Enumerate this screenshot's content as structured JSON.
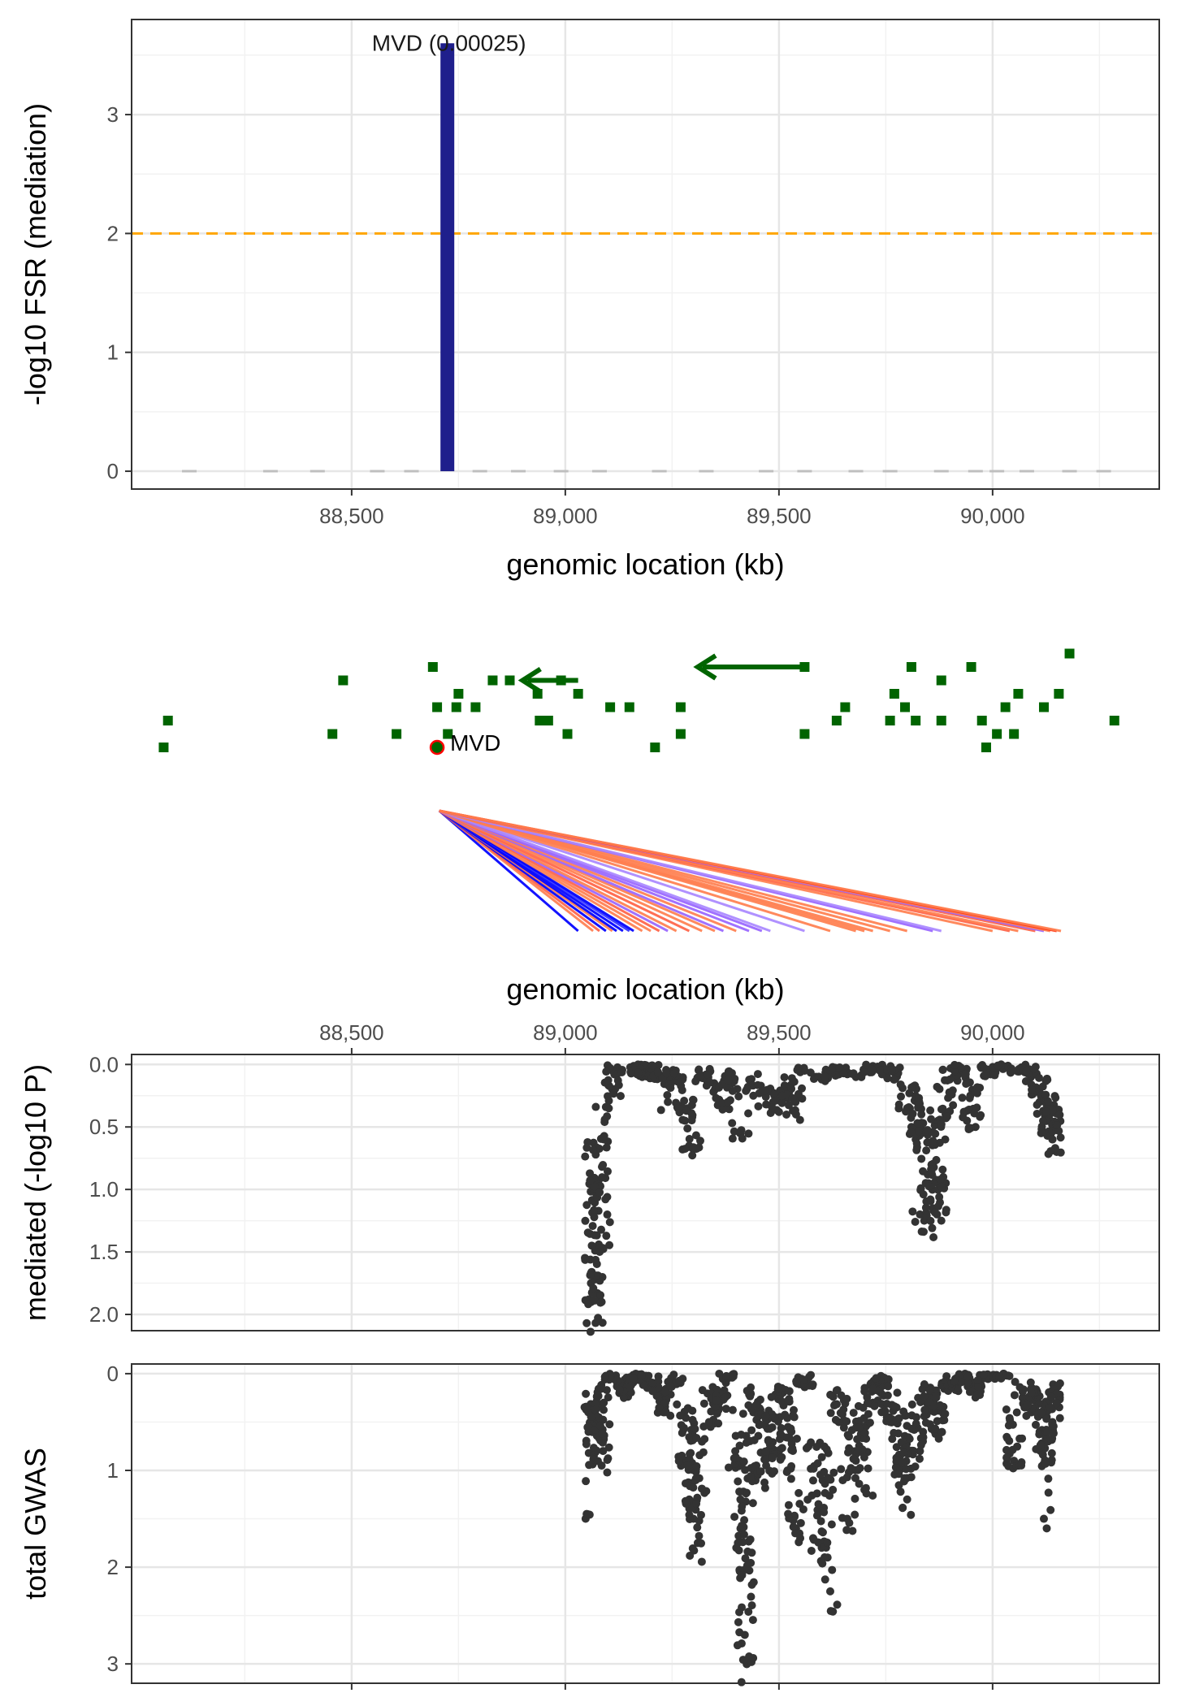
{
  "chart_data": [
    {
      "type": "bar",
      "panel": "mediation",
      "xlabel": "genomic location (kb)",
      "ylabel": "-log10 FSR (mediation)",
      "xlim": [
        87985,
        90390
      ],
      "ylim": [
        -0.15,
        3.8
      ],
      "x_ticks": [
        88500,
        89000,
        89500,
        90000
      ],
      "x_tick_labels": [
        "88,500",
        "89,000",
        "89,500",
        "90,000"
      ],
      "y_ticks": [
        0,
        1,
        2,
        3
      ],
      "y_tick_labels": [
        "0",
        "1",
        "2",
        "3"
      ],
      "threshold": {
        "y": 2,
        "color": "#FFA500",
        "style": "dashed"
      },
      "bar_color": "#1f1f8c",
      "bars": [
        {
          "x": 88724,
          "value": 3.6,
          "label": "MVD (0.00025)"
        }
      ],
      "background_bars": [
        88120,
        88310,
        88420,
        88560,
        88640,
        88800,
        88890,
        88990,
        89080,
        89220,
        89330,
        89470,
        89560,
        89680,
        89760,
        89880,
        89960,
        90010,
        90080,
        90180,
        90260
      ],
      "grid": true
    },
    {
      "type": "scatter",
      "panel": "gene-track",
      "gene_color": "#006400",
      "highlight_gene": {
        "label": "MVD",
        "x": 88700,
        "row": 0
      },
      "genes": [
        {
          "x": 88060,
          "row": 0
        },
        {
          "x": 88070,
          "row": 2
        },
        {
          "x": 88455,
          "row": 1
        },
        {
          "x": 88480,
          "row": 5
        },
        {
          "x": 88605,
          "row": 1
        },
        {
          "x": 88690,
          "row": 6
        },
        {
          "x": 88700,
          "row": 3
        },
        {
          "x": 88725,
          "row": 1
        },
        {
          "x": 88745,
          "row": 3
        },
        {
          "x": 88750,
          "row": 4
        },
        {
          "x": 88790,
          "row": 3
        },
        {
          "x": 88830,
          "row": 5
        },
        {
          "x": 88870,
          "row": 5
        },
        {
          "x": 88935,
          "row": 4
        },
        {
          "x": 88940,
          "row": 2
        },
        {
          "x": 88960,
          "row": 2
        },
        {
          "x": 88990,
          "row": 5
        },
        {
          "x": 89005,
          "row": 1
        },
        {
          "x": 89030,
          "row": 4
        },
        {
          "x": 89105,
          "row": 3
        },
        {
          "x": 89150,
          "row": 3
        },
        {
          "x": 89210,
          "row": 0
        },
        {
          "x": 89270,
          "row": 1
        },
        {
          "x": 89270,
          "row": 3
        },
        {
          "x": 89560,
          "row": 1
        },
        {
          "x": 89560,
          "row": 6
        },
        {
          "x": 89635,
          "row": 2
        },
        {
          "x": 89655,
          "row": 3
        },
        {
          "x": 89760,
          "row": 2
        },
        {
          "x": 89770,
          "row": 4
        },
        {
          "x": 89795,
          "row": 3
        },
        {
          "x": 89810,
          "row": 6
        },
        {
          "x": 89820,
          "row": 2
        },
        {
          "x": 89880,
          "row": 2
        },
        {
          "x": 89880,
          "row": 5
        },
        {
          "x": 89950,
          "row": 6
        },
        {
          "x": 89975,
          "row": 2
        },
        {
          "x": 89985,
          "row": 0
        },
        {
          "x": 90010,
          "row": 1
        },
        {
          "x": 90030,
          "row": 3
        },
        {
          "x": 90050,
          "row": 1
        },
        {
          "x": 90060,
          "row": 4
        },
        {
          "x": 90120,
          "row": 3
        },
        {
          "x": 90155,
          "row": 4
        },
        {
          "x": 90180,
          "row": 7
        },
        {
          "x": 90285,
          "row": 2
        }
      ],
      "strand_arrows": [
        {
          "x_start": 89030,
          "x_end": 88900,
          "row": 5
        },
        {
          "x_start": 89550,
          "x_end": 89310,
          "row": 6
        }
      ],
      "link_source_x": 88705,
      "links": [
        {
          "x": 89030,
          "color": "#0000ff"
        },
        {
          "x": 89065,
          "color": "#ff7f50"
        },
        {
          "x": 89080,
          "color": "#ff6347"
        },
        {
          "x": 89095,
          "color": "#0000ff"
        },
        {
          "x": 89110,
          "color": "#ff7f50"
        },
        {
          "x": 89120,
          "color": "#0000ff"
        },
        {
          "x": 89135,
          "color": "#0000ff"
        },
        {
          "x": 89150,
          "color": "#3333ff"
        },
        {
          "x": 89160,
          "color": "#0000ff"
        },
        {
          "x": 89180,
          "color": "#ff7f50"
        },
        {
          "x": 89200,
          "color": "#ff7f50"
        },
        {
          "x": 89220,
          "color": "#ff6347"
        },
        {
          "x": 89240,
          "color": "#9966ff"
        },
        {
          "x": 89260,
          "color": "#ff7f50"
        },
        {
          "x": 89290,
          "color": "#ff6347"
        },
        {
          "x": 89320,
          "color": "#ff7f50"
        },
        {
          "x": 89350,
          "color": "#ff7f50"
        },
        {
          "x": 89370,
          "color": "#9966ff"
        },
        {
          "x": 89400,
          "color": "#ff7f50"
        },
        {
          "x": 89430,
          "color": "#9966ff"
        },
        {
          "x": 89460,
          "color": "#9966ff"
        },
        {
          "x": 89480,
          "color": "#aa88ff"
        },
        {
          "x": 89560,
          "color": "#aa88ff"
        },
        {
          "x": 89620,
          "color": "#ff7f50"
        },
        {
          "x": 89680,
          "color": "#ff7f50"
        },
        {
          "x": 89700,
          "color": "#ff7f50"
        },
        {
          "x": 89720,
          "color": "#ff7f50"
        },
        {
          "x": 89760,
          "color": "#ff7f50"
        },
        {
          "x": 89800,
          "color": "#ff7f50"
        },
        {
          "x": 89860,
          "color": "#9966ff"
        },
        {
          "x": 89880,
          "color": "#aa88ff"
        },
        {
          "x": 90000,
          "color": "#ff7f50"
        },
        {
          "x": 90040,
          "color": "#ff6347"
        },
        {
          "x": 90060,
          "color": "#ff7f50"
        },
        {
          "x": 90100,
          "color": "#ff6347"
        },
        {
          "x": 90120,
          "color": "#9966ff"
        },
        {
          "x": 90135,
          "color": "#ff7f50"
        },
        {
          "x": 90150,
          "color": "#ff3311"
        },
        {
          "x": 90160,
          "color": "#ff7f50"
        }
      ],
      "xlabel": "genomic location (kb)"
    },
    {
      "type": "scatter",
      "panel": "mediated",
      "ylabel": "mediated (-log10 P)",
      "xlim": [
        87985,
        90390
      ],
      "ylim": [
        -0.08,
        2.13
      ],
      "y_reversed": true,
      "x_ticks": [
        88500,
        89000,
        89500,
        90000
      ],
      "x_tick_labels": [
        "88,500",
        "89,000",
        "89,500",
        "90,000"
      ],
      "x_axis_position": "top",
      "y_ticks": [
        0.0,
        0.5,
        1.0,
        1.5,
        2.0
      ],
      "y_tick_labels": [
        "0.0",
        "0.5",
        "1.0",
        "1.5",
        "2.0"
      ],
      "point_color": "#333333",
      "anchor_points": [
        [
          89050,
          2.07
        ],
        [
          89055,
          1.88
        ],
        [
          89060,
          1.75
        ],
        [
          89065,
          1.82
        ],
        [
          89075,
          1.83
        ],
        [
          89080,
          1.86
        ],
        [
          89085,
          1.9
        ],
        [
          89090,
          0.6
        ],
        [
          89110,
          0.2
        ],
        [
          89115,
          0.08
        ],
        [
          89170,
          0.05
        ],
        [
          89180,
          0.1
        ],
        [
          89190,
          0.02
        ],
        [
          89200,
          0.08
        ],
        [
          89220,
          0.1
        ],
        [
          89240,
          0.3
        ],
        [
          89260,
          0.12
        ],
        [
          89280,
          0.45
        ],
        [
          89290,
          0.65
        ],
        [
          89300,
          0.68
        ],
        [
          89320,
          0.1
        ],
        [
          89350,
          0.2
        ],
        [
          89370,
          0.35
        ],
        [
          89390,
          0.15
        ],
        [
          89410,
          0.55
        ],
        [
          89440,
          0.25
        ],
        [
          89470,
          0.32
        ],
        [
          89500,
          0.38
        ],
        [
          89520,
          0.27
        ],
        [
          89540,
          0.4
        ],
        [
          89560,
          0.05
        ],
        [
          89600,
          0.12
        ],
        [
          89640,
          0.08
        ],
        [
          89680,
          0.1
        ],
        [
          89720,
          0.05
        ],
        [
          89750,
          0.08
        ],
        [
          89770,
          0.12
        ],
        [
          89800,
          0.35
        ],
        [
          89810,
          0.5
        ],
        [
          89820,
          0.6
        ],
        [
          89830,
          1.2
        ],
        [
          89840,
          1.25
        ],
        [
          89850,
          0.95
        ],
        [
          89860,
          1.15
        ],
        [
          89870,
          1.2
        ],
        [
          89880,
          1.25
        ],
        [
          89890,
          0.4
        ],
        [
          89900,
          0.12
        ],
        [
          89920,
          0.08
        ],
        [
          89940,
          0.45
        ],
        [
          89960,
          0.5
        ],
        [
          89990,
          0.07
        ],
        [
          90020,
          0.0
        ],
        [
          90060,
          0.05
        ],
        [
          90090,
          0.1
        ],
        [
          90110,
          0.3
        ],
        [
          90120,
          0.45
        ],
        [
          90130,
          0.55
        ],
        [
          90140,
          0.6
        ],
        [
          90150,
          0.7
        ]
      ],
      "grid": true
    },
    {
      "type": "scatter",
      "panel": "total-gwas",
      "ylabel": "total GWAS",
      "xlim": [
        87985,
        90390
      ],
      "ylim": [
        -0.1,
        3.2
      ],
      "y_reversed": true,
      "x_ticks": [
        88500,
        89000,
        89500,
        90000
      ],
      "y_ticks": [
        0,
        1,
        2,
        3
      ],
      "y_tick_labels": [
        "0",
        "1",
        "2",
        "3"
      ],
      "point_color": "#333333",
      "anchor_points": [
        [
          89050,
          1.45
        ],
        [
          89055,
          0.82
        ],
        [
          89060,
          0.55
        ],
        [
          89075,
          0.6
        ],
        [
          89085,
          0.95
        ],
        [
          89090,
          0.3
        ],
        [
          89110,
          0.05
        ],
        [
          89140,
          0.2
        ],
        [
          89170,
          0.05
        ],
        [
          89200,
          0.15
        ],
        [
          89230,
          0.4
        ],
        [
          89260,
          0.1
        ],
        [
          89280,
          0.9
        ],
        [
          89290,
          1.3
        ],
        [
          89300,
          1.5
        ],
        [
          89310,
          1.75
        ],
        [
          89340,
          0.55
        ],
        [
          89360,
          0.3
        ],
        [
          89380,
          0.05
        ],
        [
          89400,
          0.9
        ],
        [
          89410,
          1.6
        ],
        [
          89420,
          2.7
        ],
        [
          89425,
          3.0
        ],
        [
          89440,
          0.4
        ],
        [
          89450,
          1.05
        ],
        [
          89470,
          0.95
        ],
        [
          89490,
          0.8
        ],
        [
          89510,
          0.3
        ],
        [
          89520,
          1.0
        ],
        [
          89540,
          1.6
        ],
        [
          89560,
          0.12
        ],
        [
          89580,
          1.7
        ],
        [
          89600,
          1.8
        ],
        [
          89620,
          2.25
        ],
        [
          89640,
          0.5
        ],
        [
          89660,
          1.5
        ],
        [
          89680,
          0.9
        ],
        [
          89700,
          1.2
        ],
        [
          89720,
          0.3
        ],
        [
          89740,
          0.1
        ],
        [
          89760,
          0.5
        ],
        [
          89780,
          1.0
        ],
        [
          89800,
          1.3
        ],
        [
          89830,
          0.8
        ],
        [
          89850,
          0.3
        ],
        [
          89870,
          0.6
        ],
        [
          89900,
          0.15
        ],
        [
          89930,
          0.05
        ],
        [
          89960,
          0.2
        ],
        [
          89990,
          0.02
        ],
        [
          90020,
          0.05
        ],
        [
          90050,
          0.9
        ],
        [
          90070,
          0.25
        ],
        [
          90090,
          0.4
        ],
        [
          90110,
          0.6
        ],
        [
          90120,
          1.5
        ],
        [
          90130,
          0.7
        ],
        [
          90140,
          0.5
        ],
        [
          90150,
          0.3
        ]
      ],
      "grid": true
    }
  ]
}
